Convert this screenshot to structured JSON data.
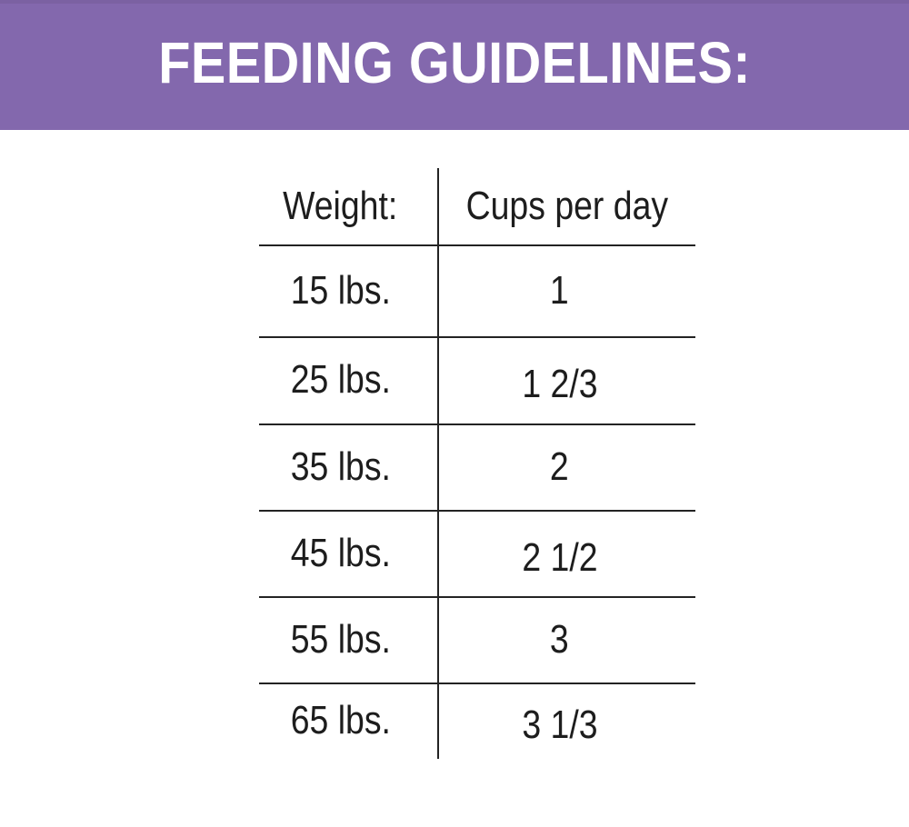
{
  "banner": {
    "title": "FEEDING GUIDELINES:",
    "background_color": "#8368ad",
    "text_color": "#ffffff"
  },
  "table": {
    "headers": {
      "weight": "Weight:",
      "cups": "Cups per day"
    },
    "rows": [
      {
        "weight": "15 lbs.",
        "cups": "1"
      },
      {
        "weight": "25 lbs.",
        "cups": "1 2/3"
      },
      {
        "weight": "35 lbs.",
        "cups": "2"
      },
      {
        "weight": "45 lbs.",
        "cups": "2 1/2"
      },
      {
        "weight": "55 lbs.",
        "cups": "3"
      },
      {
        "weight": "65 lbs.",
        "cups": "3 1/3"
      }
    ],
    "line_color": "#232323",
    "text_color": "#1d1d1d"
  },
  "chart_data": {
    "type": "table",
    "title": "FEEDING GUIDELINES:",
    "columns": [
      "Weight:",
      "Cups per day"
    ],
    "rows": [
      [
        "15 lbs.",
        "1"
      ],
      [
        "25 lbs.",
        "1 2/3"
      ],
      [
        "35 lbs.",
        "2"
      ],
      [
        "45 lbs.",
        "2 1/2"
      ],
      [
        "55 lbs.",
        "3"
      ],
      [
        "65 lbs.",
        "3 1/3"
      ]
    ],
    "weights_lbs": [
      15,
      25,
      35,
      45,
      55,
      65
    ],
    "cups_per_day_numeric": [
      1,
      1.67,
      2,
      2.5,
      3,
      3.33
    ]
  }
}
